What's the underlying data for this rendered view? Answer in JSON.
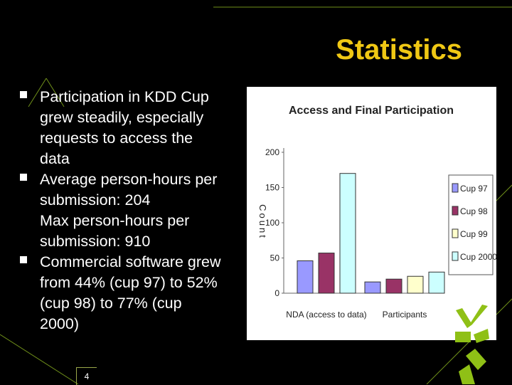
{
  "slide": {
    "title": "Statistics",
    "page_number": "4",
    "bullets": [
      {
        "lines": [
          "Participation in KDD Cup",
          "grew steadily, especially",
          "requests to access the",
          "data"
        ]
      },
      {
        "lines": [
          "Average person-hours per",
          "submission: 204",
          "Max person-hours per",
          "submission: 910"
        ]
      },
      {
        "lines": [
          "Commercial software grew",
          "from 44% (cup 97) to 52%",
          "(cup 98) to 77% (cup",
          "2000)"
        ]
      }
    ],
    "colors": {
      "background": "#000000",
      "title": "#f0c814",
      "accent_green": "#8fc016"
    },
    "decorations": [
      "green-checkmark-icon"
    ]
  },
  "chart_data": {
    "type": "bar",
    "title": "Access and Final Participation",
    "ylabel": "Count",
    "xlabel": "",
    "categories": [
      "NDA (access to data)",
      "Participants"
    ],
    "series": [
      {
        "name": "Cup 97",
        "values": [
          46,
          16
        ],
        "color": "#9999ff"
      },
      {
        "name": "Cup 98",
        "values": [
          57,
          20
        ],
        "color": "#993366"
      },
      {
        "name": "Cup 99",
        "values": [
          null,
          24
        ],
        "color": "#ffffcc"
      },
      {
        "name": "Cup 2000",
        "values": [
          170,
          30
        ],
        "color": "#ccffff"
      }
    ],
    "ylim": [
      0,
      200
    ],
    "yticks": [
      "0",
      "50",
      "100",
      "150",
      "200"
    ],
    "legend_position": "right",
    "grid": false
  }
}
